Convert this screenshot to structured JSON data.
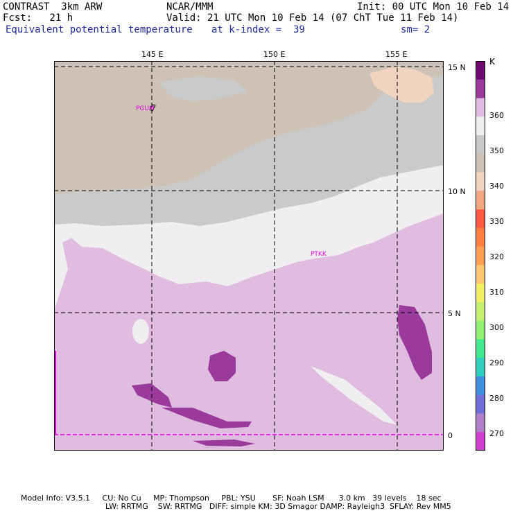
{
  "header": {
    "model": "CONTRAST  3km ARW",
    "org": "NCAR/MMM",
    "init": "Init: 00 UTC Mon 10 Feb 14",
    "fcst": "Fcst:   21 h",
    "valid": "Valid: 21 UTC Mon 10 Feb 14 (07 ChT Tue 11 Feb 14)",
    "field": "Equivalent potential temperature",
    "level": "at k-index =  39",
    "smooth": "sm= 2"
  },
  "map": {
    "lon_labels": [
      "145 E",
      "150 E",
      "155 E"
    ],
    "lat_labels": [
      "15 N",
      "10 N",
      "5 N",
      "0"
    ],
    "stations": [
      {
        "name": "PGUM"
      },
      {
        "name": "PTKK"
      }
    ]
  },
  "colorbar": {
    "unit": "K",
    "ticks": [
      "360",
      "350",
      "340",
      "330",
      "320",
      "310",
      "300",
      "290",
      "280",
      "270"
    ],
    "colors": [
      "#6e0a6e",
      "#9a3a9a",
      "#e0bce0",
      "#f0eef0",
      "#c8c8c8",
      "#cec2b6",
      "#f0d4c0",
      "#f2a880",
      "#ff5a40",
      "#ff8040",
      "#ffa050",
      "#ffc870",
      "#f0f060",
      "#c8f070",
      "#90f070",
      "#40e890",
      "#30d0c0",
      "#4090e0",
      "#7070d8",
      "#b080c8",
      "#d040d0"
    ]
  },
  "footer": {
    "line1": "Model Info: V3.5.1     CU: No Cu     MP: Thompson     PBL: YSU       SF: Noah LSM      3.0 km   39 levels    18 sec",
    "line2": "LW: RRTMG    SW: RRTMG   DIFF: simple KM: 3D Smagor DAMP: Rayleigh3  SFLAY: Rev MM5"
  }
}
